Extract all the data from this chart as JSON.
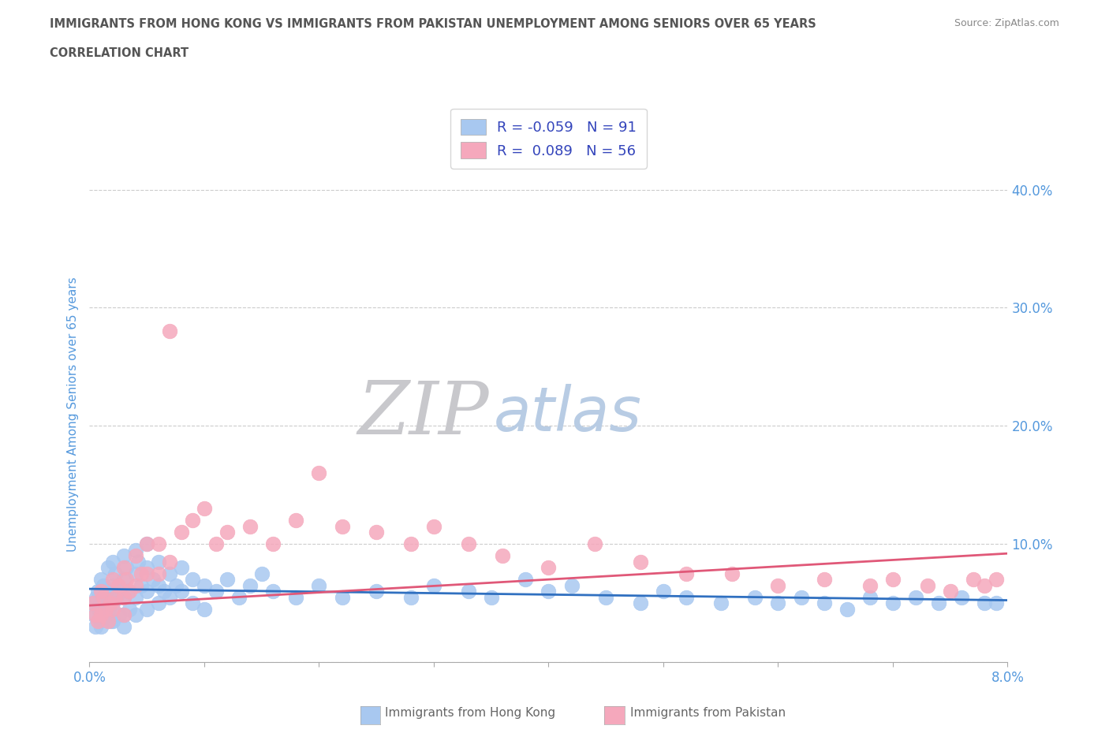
{
  "title_line1": "IMMIGRANTS FROM HONG KONG VS IMMIGRANTS FROM PAKISTAN UNEMPLOYMENT AMONG SENIORS OVER 65 YEARS",
  "title_line2": "CORRELATION CHART",
  "source_text": "Source: ZipAtlas.com",
  "ylabel": "Unemployment Among Seniors over 65 years",
  "xlim": [
    0.0,
    0.08
  ],
  "ylim": [
    0.0,
    0.42
  ],
  "xticks": [
    0.0,
    0.01,
    0.02,
    0.03,
    0.04,
    0.05,
    0.06,
    0.07,
    0.08
  ],
  "xtick_labels": [
    "0.0%",
    "",
    "",
    "",
    "",
    "",
    "",
    "",
    "8.0%"
  ],
  "yticks": [
    0.0,
    0.1,
    0.2,
    0.3,
    0.4
  ],
  "ytick_right_labels": [
    "",
    "10.0%",
    "20.0%",
    "30.0%",
    "40.0%"
  ],
  "hk_R": -0.059,
  "hk_N": 91,
  "pk_R": 0.089,
  "pk_N": 56,
  "hk_color": "#a8c8f0",
  "pk_color": "#f5a8bc",
  "hk_line_color": "#3070c0",
  "pk_line_color": "#e05878",
  "watermark_ZIP_color": "#c8c8cc",
  "watermark_atlas_color": "#b8cce4",
  "title_color": "#555555",
  "axis_label_color": "#5599dd",
  "legend_R_color": "#3344bb",
  "grid_color": "#cccccc",
  "background_color": "#ffffff",
  "hk_line_intercept": 0.062,
  "hk_line_slope": -0.12,
  "pk_line_intercept": 0.048,
  "pk_line_slope": 0.55,
  "hk_scatter_x": [
    0.0003,
    0.0004,
    0.0005,
    0.0006,
    0.0007,
    0.0008,
    0.0009,
    0.001,
    0.001,
    0.001,
    0.0012,
    0.0013,
    0.0014,
    0.0015,
    0.0016,
    0.0017,
    0.0018,
    0.002,
    0.002,
    0.002,
    0.002,
    0.0022,
    0.0023,
    0.0025,
    0.0026,
    0.003,
    0.003,
    0.003,
    0.003,
    0.003,
    0.0032,
    0.0033,
    0.0035,
    0.004,
    0.004,
    0.004,
    0.004,
    0.0042,
    0.0045,
    0.005,
    0.005,
    0.005,
    0.005,
    0.0055,
    0.006,
    0.006,
    0.006,
    0.0065,
    0.007,
    0.007,
    0.0075,
    0.008,
    0.008,
    0.009,
    0.009,
    0.01,
    0.01,
    0.011,
    0.012,
    0.013,
    0.014,
    0.015,
    0.016,
    0.018,
    0.02,
    0.022,
    0.025,
    0.028,
    0.03,
    0.033,
    0.035,
    0.038,
    0.04,
    0.042,
    0.045,
    0.048,
    0.05,
    0.052,
    0.055,
    0.058,
    0.06,
    0.062,
    0.064,
    0.066,
    0.068,
    0.07,
    0.072,
    0.074,
    0.076,
    0.078,
    0.079
  ],
  "hk_scatter_y": [
    0.05,
    0.04,
    0.03,
    0.055,
    0.06,
    0.045,
    0.035,
    0.07,
    0.05,
    0.03,
    0.065,
    0.055,
    0.04,
    0.06,
    0.08,
    0.045,
    0.035,
    0.085,
    0.065,
    0.05,
    0.035,
    0.075,
    0.055,
    0.06,
    0.04,
    0.09,
    0.07,
    0.055,
    0.04,
    0.03,
    0.08,
    0.06,
    0.045,
    0.095,
    0.075,
    0.055,
    0.04,
    0.085,
    0.065,
    0.1,
    0.08,
    0.06,
    0.045,
    0.07,
    0.085,
    0.065,
    0.05,
    0.06,
    0.075,
    0.055,
    0.065,
    0.08,
    0.06,
    0.07,
    0.05,
    0.065,
    0.045,
    0.06,
    0.07,
    0.055,
    0.065,
    0.075,
    0.06,
    0.055,
    0.065,
    0.055,
    0.06,
    0.055,
    0.065,
    0.06,
    0.055,
    0.07,
    0.06,
    0.065,
    0.055,
    0.05,
    0.06,
    0.055,
    0.05,
    0.055,
    0.05,
    0.055,
    0.05,
    0.045,
    0.055,
    0.05,
    0.055,
    0.05,
    0.055,
    0.05,
    0.05
  ],
  "pk_scatter_x": [
    0.0003,
    0.0005,
    0.0007,
    0.001,
    0.001,
    0.0012,
    0.0014,
    0.0016,
    0.0018,
    0.002,
    0.002,
    0.0022,
    0.0025,
    0.003,
    0.003,
    0.003,
    0.0032,
    0.0035,
    0.004,
    0.004,
    0.0045,
    0.005,
    0.005,
    0.006,
    0.006,
    0.007,
    0.007,
    0.008,
    0.009,
    0.01,
    0.011,
    0.012,
    0.014,
    0.016,
    0.018,
    0.02,
    0.022,
    0.025,
    0.028,
    0.03,
    0.033,
    0.036,
    0.04,
    0.044,
    0.048,
    0.052,
    0.056,
    0.06,
    0.064,
    0.068,
    0.07,
    0.073,
    0.075,
    0.077,
    0.078,
    0.079
  ],
  "pk_scatter_y": [
    0.05,
    0.04,
    0.035,
    0.06,
    0.04,
    0.055,
    0.045,
    0.035,
    0.05,
    0.07,
    0.045,
    0.055,
    0.065,
    0.08,
    0.055,
    0.04,
    0.07,
    0.06,
    0.09,
    0.065,
    0.075,
    0.1,
    0.075,
    0.1,
    0.075,
    0.28,
    0.085,
    0.11,
    0.12,
    0.13,
    0.1,
    0.11,
    0.115,
    0.1,
    0.12,
    0.16,
    0.115,
    0.11,
    0.1,
    0.115,
    0.1,
    0.09,
    0.08,
    0.1,
    0.085,
    0.075,
    0.075,
    0.065,
    0.07,
    0.065,
    0.07,
    0.065,
    0.06,
    0.07,
    0.065,
    0.07
  ]
}
